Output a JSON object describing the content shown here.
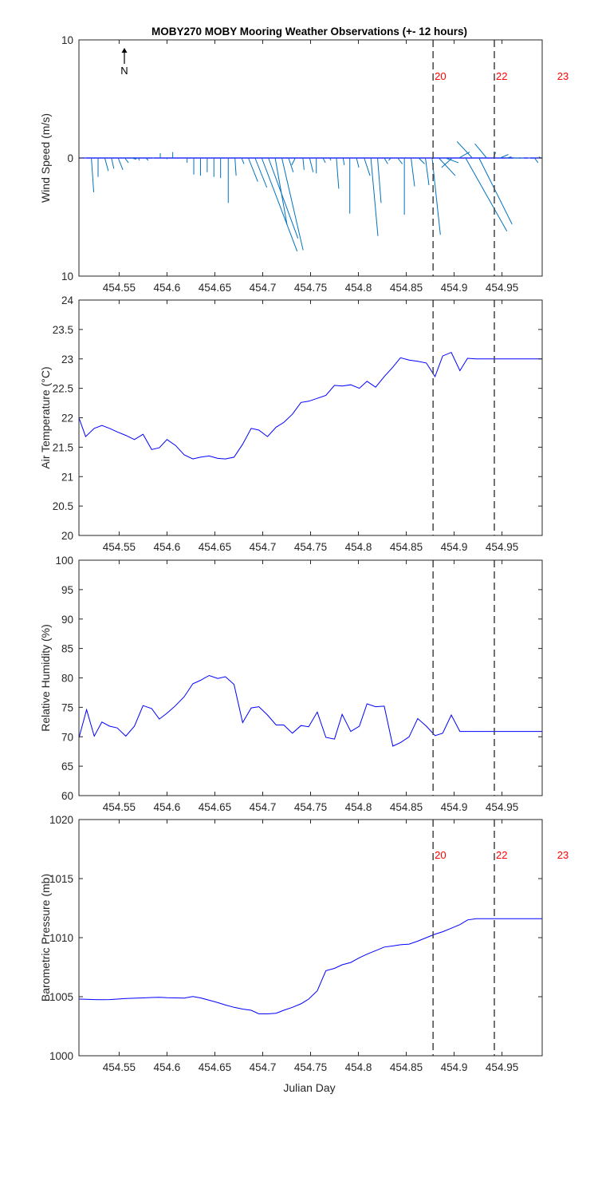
{
  "title": "MOBY270 MOBY Mooring Weather Observations (+- 12 hours)",
  "xlabel": "Julian Day",
  "x_ticks": [
    454.55,
    454.6,
    454.65,
    454.7,
    454.75,
    454.8,
    454.85,
    454.9,
    454.95
  ],
  "x_tick_labels": [
    "454.55",
    "454.6",
    "454.65",
    "454.7",
    "454.75",
    "454.8",
    "454.85",
    "454.9",
    "454.95"
  ],
  "xlim": [
    454.508,
    454.992
  ],
  "markers": [
    {
      "x": 454.878,
      "label": "20"
    },
    {
      "x": 454.942,
      "label": "22"
    },
    {
      "x": 455.006,
      "label": "23"
    }
  ],
  "north_label": "N",
  "colors": {
    "series": "#0000ff",
    "wind": "#0072bd",
    "marker_line": "#444444",
    "marker_text": "#ff0000",
    "axis": "#262626"
  },
  "chart_data": [
    {
      "id": "wind",
      "type": "quiver",
      "ylabel": "Wind Speed (m/s)",
      "ylim": [
        -10,
        10
      ],
      "y_ticks": [
        -10,
        0,
        10
      ],
      "y_tick_labels": [
        "10",
        "0",
        "10"
      ],
      "grid": false,
      "vectors": [
        {
          "x": 454.508,
          "u": 0.0,
          "v": 0.0
        },
        {
          "x": 454.514,
          "u": 0.1,
          "v": 0.0
        },
        {
          "x": 454.521,
          "u": 0.2,
          "v": -2.9
        },
        {
          "x": 454.528,
          "u": 0.0,
          "v": -1.6
        },
        {
          "x": 454.535,
          "u": 0.3,
          "v": -1.1
        },
        {
          "x": 454.542,
          "u": 0.2,
          "v": -0.9
        },
        {
          "x": 454.549,
          "u": 0.4,
          "v": -1.0
        },
        {
          "x": 454.556,
          "u": 0.3,
          "v": -0.4
        },
        {
          "x": 454.563,
          "u": 0.4,
          "v": -0.1
        },
        {
          "x": 454.57,
          "u": 0.1,
          "v": -0.2
        },
        {
          "x": 454.578,
          "u": 0.2,
          "v": -0.2
        },
        {
          "x": 454.585,
          "u": 0.1,
          "v": 0.0
        },
        {
          "x": 454.593,
          "u": 0.0,
          "v": 0.4
        },
        {
          "x": 454.6,
          "u": 0.0,
          "v": -0.1
        },
        {
          "x": 454.606,
          "u": 0.0,
          "v": 0.5
        },
        {
          "x": 454.614,
          "u": 0.0,
          "v": 0.0
        },
        {
          "x": 454.621,
          "u": 0.0,
          "v": -0.4
        },
        {
          "x": 454.628,
          "u": 0.0,
          "v": -1.4
        },
        {
          "x": 454.635,
          "u": 0.0,
          "v": -1.5
        },
        {
          "x": 454.642,
          "u": 0.0,
          "v": -1.2
        },
        {
          "x": 454.649,
          "u": 0.0,
          "v": -1.6
        },
        {
          "x": 454.656,
          "u": 0.0,
          "v": -1.7
        },
        {
          "x": 454.664,
          "u": 0.0,
          "v": -3.8
        },
        {
          "x": 454.671,
          "u": 0.1,
          "v": -1.5
        },
        {
          "x": 454.678,
          "u": 0.2,
          "v": -0.5
        },
        {
          "x": 454.685,
          "u": 0.8,
          "v": -2.0
        },
        {
          "x": 454.692,
          "u": 1.0,
          "v": -2.5
        },
        {
          "x": 454.699,
          "u": 3.0,
          "v": -7.9
        },
        {
          "x": 454.706,
          "u": 2.5,
          "v": -6.8
        },
        {
          "x": 454.713,
          "u": 1.0,
          "v": -5.6
        },
        {
          "x": 454.72,
          "u": 1.8,
          "v": -7.8
        },
        {
          "x": 454.727,
          "u": 0.4,
          "v": -1.2
        },
        {
          "x": 454.734,
          "u": -0.3,
          "v": -0.6
        },
        {
          "x": 454.742,
          "u": 0.1,
          "v": -1.0
        },
        {
          "x": 454.749,
          "u": 0.3,
          "v": -1.2
        },
        {
          "x": 454.756,
          "u": 0.0,
          "v": -1.3
        },
        {
          "x": 454.763,
          "u": 0.2,
          "v": -0.4
        },
        {
          "x": 454.77,
          "u": 0.1,
          "v": -0.2
        },
        {
          "x": 454.777,
          "u": 0.2,
          "v": -2.6
        },
        {
          "x": 454.784,
          "u": 0.1,
          "v": -0.6
        },
        {
          "x": 454.791,
          "u": 0.0,
          "v": -4.7
        },
        {
          "x": 454.798,
          "u": 0.2,
          "v": -0.8
        },
        {
          "x": 454.806,
          "u": 0.5,
          "v": -1.5
        },
        {
          "x": 454.813,
          "u": 0.6,
          "v": -6.6
        },
        {
          "x": 454.82,
          "u": 0.3,
          "v": -3.8
        },
        {
          "x": 454.827,
          "u": 0.3,
          "v": -0.5
        },
        {
          "x": 454.834,
          "u": -0.2,
          "v": -0.2
        },
        {
          "x": 454.841,
          "u": 0.4,
          "v": -0.5
        },
        {
          "x": 454.848,
          "u": 0.0,
          "v": -4.8
        },
        {
          "x": 454.855,
          "u": 0.3,
          "v": -2.4
        },
        {
          "x": 454.863,
          "u": 0.5,
          "v": -0.5
        },
        {
          "x": 454.87,
          "u": 0.3,
          "v": -2.3
        },
        {
          "x": 454.877,
          "u": 0.7,
          "v": -6.5
        },
        {
          "x": 454.884,
          "u": 1.4,
          "v": -1.5
        },
        {
          "x": 454.891,
          "u": 1.1,
          "v": -0.4
        },
        {
          "x": 454.898,
          "u": -0.9,
          "v": -0.8
        },
        {
          "x": 454.905,
          "u": 0.9,
          "v": 0.5
        },
        {
          "x": 454.912,
          "u": 3.5,
          "v": -6.2
        },
        {
          "x": 454.919,
          "u": -1.3,
          "v": 1.4
        },
        {
          "x": 454.926,
          "u": 2.8,
          "v": -5.6
        },
        {
          "x": 454.934,
          "u": -1.0,
          "v": 1.2
        },
        {
          "x": 454.941,
          "u": 0.2,
          "v": 0.5
        },
        {
          "x": 454.948,
          "u": 0.7,
          "v": 0.3
        },
        {
          "x": 454.955,
          "u": 0.4,
          "v": 0.1
        },
        {
          "x": 454.962,
          "u": 0.5,
          "v": 0.0
        },
        {
          "x": 454.969,
          "u": 0.3,
          "v": 0.0
        },
        {
          "x": 454.977,
          "u": 0.2,
          "v": 0.0
        },
        {
          "x": 454.984,
          "u": 0.3,
          "v": -0.4
        },
        {
          "x": 454.991,
          "u": -0.2,
          "v": 0.1
        }
      ]
    },
    {
      "id": "airtemp",
      "type": "line",
      "ylabel": "Air Temperature (°C)",
      "ylim": [
        20,
        24
      ],
      "y_ticks": [
        20,
        20.5,
        21,
        21.5,
        22,
        22.5,
        23,
        23.5,
        24
      ],
      "y_tick_labels": [
        "20",
        "20.5",
        "21",
        "21.5",
        "22",
        "22.5",
        "23",
        "23.5",
        "24"
      ],
      "grid": false,
      "x": [
        454.508,
        454.515,
        454.524,
        454.532,
        454.54,
        454.548,
        454.557,
        454.566,
        454.575,
        454.584,
        454.592,
        454.6,
        454.609,
        454.618,
        454.627,
        454.635,
        454.644,
        454.653,
        454.661,
        454.67,
        454.679,
        454.688,
        454.696,
        454.705,
        454.714,
        454.722,
        454.731,
        454.74,
        454.748,
        454.757,
        454.766,
        454.775,
        454.783,
        454.792,
        454.801,
        454.809,
        454.818,
        454.827,
        454.836,
        454.844,
        454.853,
        454.862,
        454.871,
        454.88,
        454.888,
        454.897,
        454.906,
        454.914,
        454.923,
        454.932,
        454.941,
        454.949,
        454.958,
        454.967,
        454.975,
        454.984,
        454.992
      ],
      "y": [
        22.0,
        21.68,
        21.82,
        21.87,
        21.82,
        21.76,
        21.7,
        21.63,
        21.72,
        21.46,
        21.49,
        21.63,
        21.53,
        21.37,
        21.3,
        21.33,
        21.35,
        21.31,
        21.3,
        21.33,
        21.55,
        21.82,
        21.79,
        21.68,
        21.84,
        21.92,
        22.06,
        22.26,
        22.28,
        22.33,
        22.38,
        22.55,
        22.54,
        22.56,
        22.5,
        22.62,
        22.52,
        22.7,
        22.86,
        23.02,
        22.98,
        22.96,
        22.93,
        22.7,
        23.05,
        23.11,
        22.8,
        23.01,
        23.0,
        23.0,
        23.0,
        23.0,
        23.0,
        23.0,
        23.0,
        23.0,
        23.0
      ]
    },
    {
      "id": "humidity",
      "type": "line",
      "ylabel": "Relative Humidity (%)",
      "ylim": [
        60,
        100
      ],
      "y_ticks": [
        60,
        65,
        70,
        75,
        80,
        85,
        90,
        95,
        100
      ],
      "y_tick_labels": [
        "60",
        "65",
        "70",
        "75",
        "80",
        "85",
        "90",
        "95",
        "100"
      ],
      "grid": false,
      "x": [
        454.508,
        454.516,
        454.524,
        454.532,
        454.54,
        454.548,
        454.557,
        454.566,
        454.575,
        454.584,
        454.592,
        454.6,
        454.609,
        454.618,
        454.627,
        454.635,
        454.644,
        454.653,
        454.661,
        454.67,
        454.679,
        454.688,
        454.696,
        454.705,
        454.714,
        454.722,
        454.731,
        454.74,
        454.748,
        454.757,
        454.766,
        454.775,
        454.783,
        454.792,
        454.801,
        454.809,
        454.818,
        454.827,
        454.836,
        454.844,
        454.853,
        454.862,
        454.871,
        454.88,
        454.888,
        454.897,
        454.906,
        454.914,
        454.923,
        454.932,
        454.941,
        454.949,
        454.958,
        454.967,
        454.975,
        454.984,
        454.992
      ],
      "y": [
        69.8,
        74.6,
        70.1,
        72.5,
        71.8,
        71.5,
        70.1,
        71.8,
        75.3,
        74.8,
        73.0,
        74.0,
        75.3,
        76.8,
        79.0,
        79.6,
        80.4,
        79.9,
        80.2,
        78.9,
        72.4,
        74.9,
        75.1,
        73.7,
        72.0,
        72.0,
        70.6,
        71.9,
        71.7,
        74.2,
        69.9,
        69.6,
        73.8,
        70.9,
        71.8,
        75.6,
        75.1,
        75.2,
        68.4,
        69.0,
        70.0,
        73.1,
        71.8,
        70.2,
        70.6,
        73.7,
        70.9,
        70.9,
        70.9,
        70.9,
        70.9,
        70.9,
        70.9,
        70.9,
        70.9,
        70.9,
        70.9
      ]
    },
    {
      "id": "pressure",
      "type": "line",
      "ylabel": "Barometric Pressure (mb)",
      "xlabel": "Julian Day",
      "ylim": [
        1000,
        1020
      ],
      "y_ticks": [
        1000,
        1005,
        1010,
        1015,
        1020
      ],
      "y_tick_labels": [
        "1000",
        "1005",
        "1010",
        "1015",
        "1020"
      ],
      "grid": false,
      "x": [
        454.508,
        454.516,
        454.524,
        454.532,
        454.54,
        454.548,
        454.557,
        454.566,
        454.575,
        454.584,
        454.592,
        454.6,
        454.609,
        454.618,
        454.627,
        454.635,
        454.644,
        454.653,
        454.661,
        454.67,
        454.679,
        454.688,
        454.696,
        454.705,
        454.714,
        454.722,
        454.731,
        454.74,
        454.748,
        454.757,
        454.766,
        454.775,
        454.783,
        454.792,
        454.801,
        454.809,
        454.818,
        454.827,
        454.836,
        454.844,
        454.853,
        454.862,
        454.871,
        454.88,
        454.888,
        454.897,
        454.906,
        454.914,
        454.923,
        454.932,
        454.941,
        454.949,
        454.958,
        454.967,
        454.975,
        454.984,
        454.992
      ],
      "y": [
        1004.8,
        1004.78,
        1004.76,
        1004.75,
        1004.76,
        1004.8,
        1004.85,
        1004.87,
        1004.9,
        1004.93,
        1004.95,
        1004.92,
        1004.9,
        1004.88,
        1005.02,
        1004.9,
        1004.7,
        1004.5,
        1004.3,
        1004.1,
        1003.95,
        1003.85,
        1003.55,
        1003.55,
        1003.6,
        1003.85,
        1004.1,
        1004.4,
        1004.8,
        1005.5,
        1007.2,
        1007.4,
        1007.7,
        1007.9,
        1008.3,
        1008.6,
        1008.9,
        1009.2,
        1009.3,
        1009.4,
        1009.45,
        1009.7,
        1010.0,
        1010.3,
        1010.5,
        1010.8,
        1011.1,
        1011.5,
        1011.6,
        1011.6,
        1011.6,
        1011.6,
        1011.6,
        1011.6,
        1011.6,
        1011.6,
        1011.6
      ]
    }
  ]
}
